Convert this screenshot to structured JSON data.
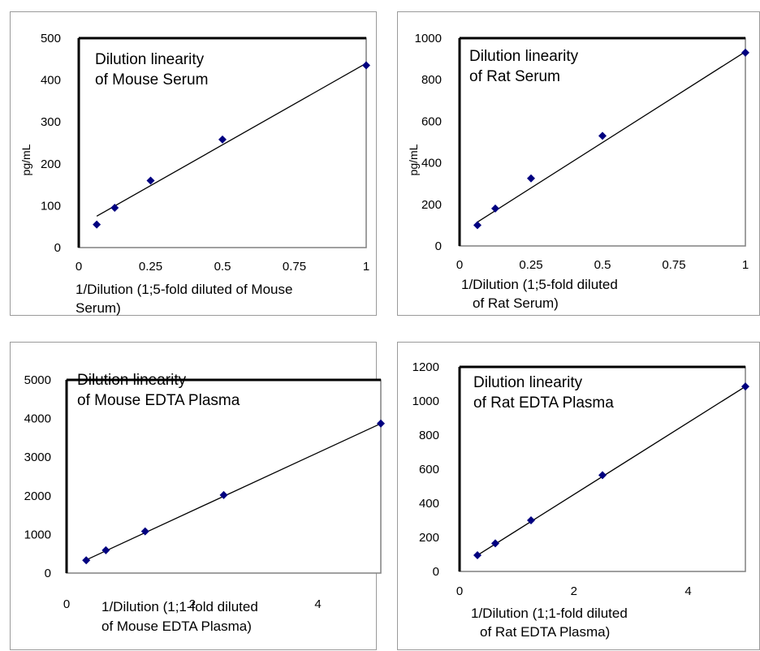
{
  "chart_data": [
    {
      "type": "scatter",
      "title_lines": [
        "Dilution linearity",
        "of Mouse Serum"
      ],
      "xlabel_lines": [
        "1/Dilution (1;5-fold diluted of Mouse",
        "Serum)"
      ],
      "ylabel": "pg/mL",
      "xlim": [
        0,
        1
      ],
      "ylim": [
        0,
        500
      ],
      "xticks": [
        "0",
        "0.25",
        "0.5",
        "0.75",
        "1"
      ],
      "yticks": [
        "0",
        "100",
        "200",
        "300",
        "400",
        "500"
      ],
      "grid": false,
      "series": [
        {
          "x": [
            0.0625,
            0.125,
            0.25,
            0.5,
            1
          ],
          "y": [
            55,
            95,
            160,
            258,
            435
          ]
        }
      ],
      "trendline": {
        "x": [
          0.0625,
          1
        ],
        "y": [
          75,
          440
        ]
      },
      "marker_color": "#000080"
    },
    {
      "type": "scatter",
      "title_lines": [
        "Dilution linearity",
        "of Rat Serum"
      ],
      "xlabel_lines": [
        "1/Dilution (1;5-fold diluted",
        "of Rat Serum)"
      ],
      "ylabel": "pg/mL",
      "xlim": [
        0,
        1
      ],
      "ylim": [
        0,
        1000
      ],
      "xticks": [
        "0",
        "0.25",
        "0.5",
        "0.75",
        "1"
      ],
      "yticks": [
        "0",
        "200",
        "400",
        "600",
        "800",
        "1000"
      ],
      "grid": false,
      "series": [
        {
          "x": [
            0.0625,
            0.125,
            0.25,
            0.5,
            1
          ],
          "y": [
            100,
            180,
            325,
            530,
            930
          ]
        }
      ],
      "trendline": {
        "x": [
          0.0625,
          1
        ],
        "y": [
          115,
          935
        ]
      },
      "marker_color": "#000080"
    },
    {
      "type": "scatter",
      "title_lines": [
        "Dilution linearity",
        "of Mouse EDTA Plasma"
      ],
      "xlabel_lines": [
        "1/Dilution (1;1-fold diluted",
        "of Mouse EDTA Plasma)"
      ],
      "ylabel": "",
      "xlim": [
        0,
        5
      ],
      "ylim": [
        0,
        5000
      ],
      "xticks": [
        "0",
        "2",
        "4"
      ],
      "xtick_values": [
        0,
        2,
        4
      ],
      "yticks": [
        "0",
        "1000",
        "2000",
        "3000",
        "4000",
        "5000"
      ],
      "grid": false,
      "series": [
        {
          "x": [
            0.3125,
            0.625,
            1.25,
            2.5,
            5
          ],
          "y": [
            330,
            590,
            1080,
            2020,
            3870
          ]
        }
      ],
      "trendline": {
        "x": [
          0.3125,
          5
        ],
        "y": [
          340,
          3870
        ]
      },
      "marker_color": "#000080"
    },
    {
      "type": "scatter",
      "title_lines": [
        "Dilution linearity",
        "of Rat EDTA Plasma"
      ],
      "xlabel_lines": [
        "1/Dilution (1;1-fold diluted",
        "of Rat EDTA Plasma)"
      ],
      "ylabel": "",
      "xlim": [
        0,
        5
      ],
      "ylim": [
        0,
        1200
      ],
      "xticks": [
        "0",
        "2",
        "4"
      ],
      "xtick_values": [
        0,
        2,
        4
      ],
      "yticks": [
        "0",
        "200",
        "400",
        "600",
        "800",
        "1000",
        "1200"
      ],
      "grid": false,
      "series": [
        {
          "x": [
            0.3125,
            0.625,
            1.25,
            2.5,
            5
          ],
          "y": [
            95,
            165,
            300,
            565,
            1085
          ]
        }
      ],
      "trendline": {
        "x": [
          0.3125,
          5
        ],
        "y": [
          95,
          1085
        ]
      },
      "marker_color": "#000080"
    }
  ]
}
